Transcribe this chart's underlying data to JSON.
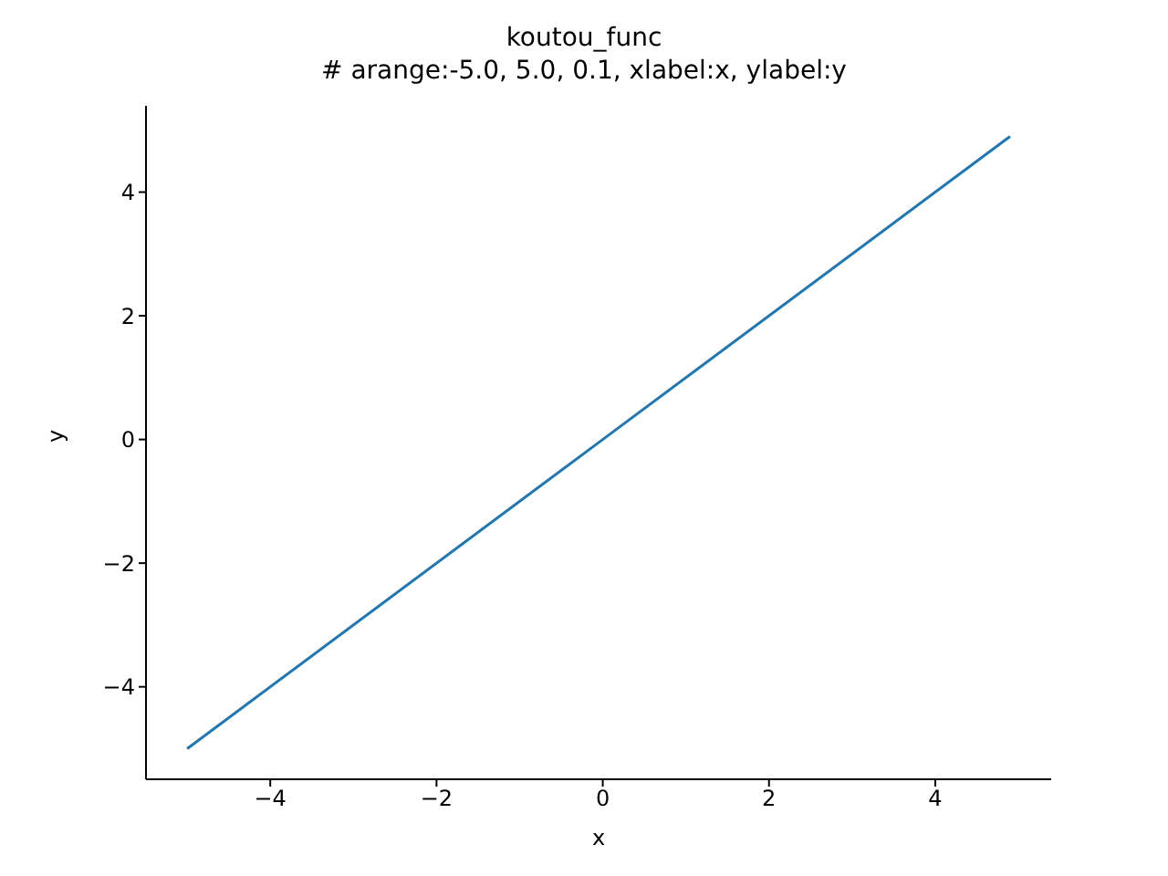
{
  "chart_data": {
    "type": "line",
    "title": "koutou_func",
    "subtitle": "# arange:-5.0, 5.0, 0.1, xlabel:x, ylabel:y",
    "xlabel": "x",
    "ylabel": "y",
    "x": [
      -5,
      0,
      4.9
    ],
    "series": [
      {
        "color": "#1f77b4",
        "values": [
          -5,
          0,
          4.9
        ]
      }
    ],
    "xlim": [
      -5.495,
      5.395
    ],
    "ylim": [
      -5.495,
      5.395
    ],
    "xticks": [
      {
        "value": -4,
        "label": "−4"
      },
      {
        "value": -2,
        "label": "−2"
      },
      0,
      2,
      4
    ],
    "yticks": [
      {
        "value": -4,
        "label": "−4"
      },
      {
        "value": -2,
        "label": "−2"
      },
      0,
      2,
      4
    ]
  }
}
